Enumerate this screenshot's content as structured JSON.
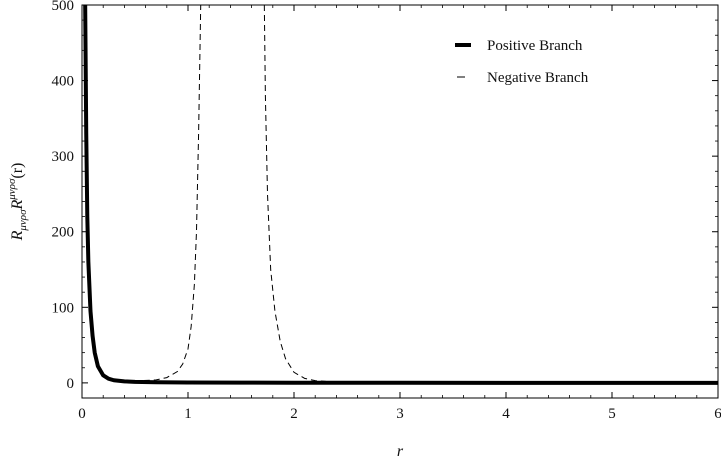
{
  "chart_data": {
    "type": "line",
    "title": "",
    "xlabel": "r",
    "ylabel": {
      "base": "R",
      "sub": "μνρσ",
      "base2": "R",
      "sup": "μνρσ",
      "arg": "(r)"
    },
    "xlim": [
      0,
      6
    ],
    "ylim": [
      -20,
      500
    ],
    "x_ticks": [
      "0",
      "1",
      "2",
      "3",
      "4",
      "5",
      "6"
    ],
    "y_ticks": [
      "0",
      "100",
      "200",
      "300",
      "400",
      "500"
    ],
    "grid": false,
    "legend_position": "top-right",
    "series": [
      {
        "name": "Positive Branch",
        "style": "solid-thick",
        "color": "#000000",
        "x": [
          0.03,
          0.04,
          0.05,
          0.06,
          0.08,
          0.1,
          0.12,
          0.15,
          0.2,
          0.25,
          0.3,
          0.4,
          0.5,
          0.7,
          1.0,
          1.5,
          2.0,
          3.0,
          4.0,
          5.0,
          6.0
        ],
        "y": [
          500,
          330,
          220,
          160,
          95,
          62,
          40,
          22,
          10,
          5.5,
          3.5,
          2,
          1.4,
          0.8,
          0.5,
          0.3,
          0.2,
          0.1,
          0.05,
          0.03,
          0.02
        ]
      },
      {
        "name": "Negative Branch",
        "style": "dashed",
        "color": "#000000",
        "segments": [
          {
            "x": [
              0.3,
              0.5,
              0.7,
              0.8,
              0.9,
              0.95,
              1.0,
              1.03,
              1.06,
              1.08,
              1.1,
              1.12
            ],
            "y": [
              2,
              2.5,
              4,
              7,
              15,
              25,
              45,
              75,
              130,
              200,
              330,
              500
            ]
          },
          {
            "x": [
              1.72,
              1.73,
              1.75,
              1.78,
              1.82,
              1.87,
              1.92,
              2.0,
              2.1,
              2.2,
              2.3
            ],
            "y": [
              500,
              380,
              250,
              150,
              95,
              55,
              32,
              14,
              6,
              3,
              2
            ]
          }
        ]
      }
    ]
  },
  "colors": {
    "axis": "#000000",
    "background": "#ffffff"
  }
}
